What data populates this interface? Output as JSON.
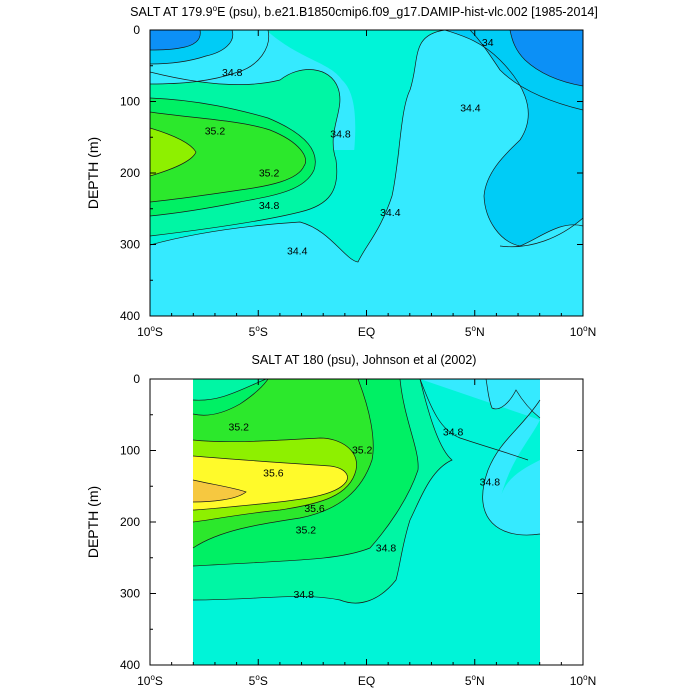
{
  "chart_data": [
    {
      "type": "contour",
      "title": "SALT AT 179.9°E (psu), b.e21.B1850cmip6.f09_g17.DAMIP-hist-vlc.002 [1985-2014]",
      "title_parts": {
        "pre": "SALT AT 179.9",
        "sup": "o",
        "post": "E (psu), b.e21.B1850cmip6.f09_g17.DAMIP-hist-vlc.002 [1985-2014]"
      },
      "xlabel": "",
      "ylabel": "DEPTH (m)",
      "xlim": [
        -10,
        10
      ],
      "ylim": [
        0,
        400
      ],
      "x_ticks": [
        {
          "value": -10,
          "label": "10°S",
          "num": "10",
          "hemi": "S"
        },
        {
          "value": -5,
          "label": "5°S",
          "num": "5",
          "hemi": "S"
        },
        {
          "value": 0,
          "label": "EQ",
          "num": "EQ",
          "hemi": ""
        },
        {
          "value": 5,
          "label": "5°N",
          "num": "5",
          "hemi": "N"
        },
        {
          "value": 10,
          "label": "10°N",
          "num": "10",
          "hemi": "N"
        }
      ],
      "y_ticks": [
        0,
        100,
        200,
        300,
        400
      ],
      "data_extent_x": [
        -10,
        10
      ],
      "levels": [
        34.0,
        34.2,
        34.4,
        34.6,
        34.8,
        35.0,
        35.2,
        35.4
      ],
      "level_colors": [
        "#0c90f6",
        "#00ccf6",
        "#35eaff",
        "#00f4d8",
        "#00f6a4",
        "#00f064",
        "#2ce82c",
        "#8ef000"
      ],
      "background_color": "#35eaff",
      "contour_labels": [
        {
          "text": "34.8",
          "x": -6.2,
          "y": 60
        },
        {
          "text": "35.2",
          "x": -7.0,
          "y": 142
        },
        {
          "text": "35.2",
          "x": -4.5,
          "y": 201
        },
        {
          "text": "34.8",
          "x": -4.5,
          "y": 246
        },
        {
          "text": "34.4",
          "x": -3.2,
          "y": 310
        },
        {
          "text": "34.8",
          "x": -1.2,
          "y": 146
        },
        {
          "text": "34.4",
          "x": 1.1,
          "y": 256
        },
        {
          "text": "34.4",
          "x": 4.8,
          "y": 110
        },
        {
          "text": "34",
          "x": 5.6,
          "y": 18
        }
      ]
    },
    {
      "type": "contour",
      "title": "SALT AT 180 (psu), Johnson et al (2002)",
      "xlabel": "",
      "ylabel": "DEPTH (m)",
      "xlim": [
        -10,
        10
      ],
      "ylim": [
        0,
        400
      ],
      "x_ticks": [
        {
          "value": -10,
          "label": "10°S",
          "num": "10",
          "hemi": "S"
        },
        {
          "value": -5,
          "label": "5°S",
          "num": "5",
          "hemi": "S"
        },
        {
          "value": 0,
          "label": "EQ",
          "num": "EQ",
          "hemi": ""
        },
        {
          "value": 5,
          "label": "5°N",
          "num": "5",
          "hemi": "N"
        },
        {
          "value": 10,
          "label": "10°N",
          "num": "10",
          "hemi": "N"
        }
      ],
      "y_ticks": [
        0,
        100,
        200,
        300,
        400
      ],
      "data_extent_x": [
        -8,
        8
      ],
      "levels": [
        34.6,
        34.8,
        35.0,
        35.2,
        35.4,
        35.6,
        35.8
      ],
      "level_colors": [
        "#35eaff",
        "#00f4d8",
        "#00f6a4",
        "#00f064",
        "#2ce82c",
        "#8ef000",
        "#fffa2a",
        "#f6c840"
      ],
      "background_color": "#00f4d8",
      "contour_labels": [
        {
          "text": "35.2",
          "x": -5.9,
          "y": 68
        },
        {
          "text": "35.6",
          "x": -4.3,
          "y": 132
        },
        {
          "text": "35.6",
          "x": -2.4,
          "y": 182
        },
        {
          "text": "35.2",
          "x": -2.8,
          "y": 212
        },
        {
          "text": "35.2",
          "x": -0.2,
          "y": 100
        },
        {
          "text": "34.8",
          "x": 0.9,
          "y": 237
        },
        {
          "text": "34.8",
          "x": 4.0,
          "y": 75
        },
        {
          "text": "34.8",
          "x": 5.7,
          "y": 145
        },
        {
          "text": "34.8",
          "x": -2.9,
          "y": 302
        }
      ]
    }
  ]
}
